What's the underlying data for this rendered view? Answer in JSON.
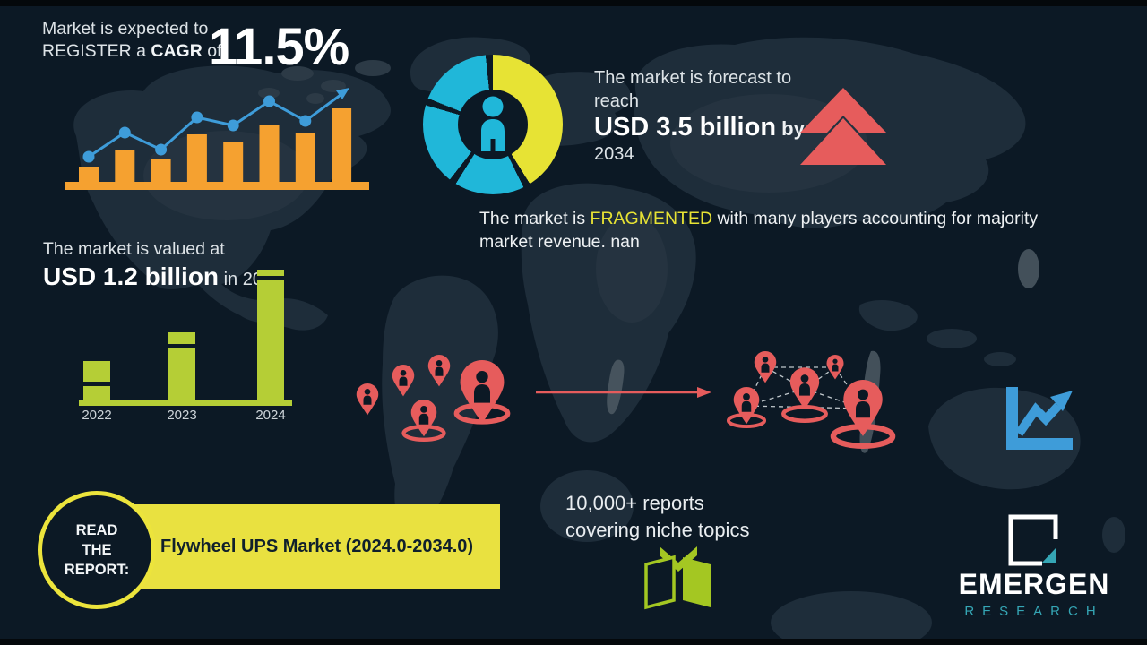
{
  "colors": {
    "background": "#0c1925",
    "map": "#1e2d3a",
    "map_light": "#2c3a46",
    "orange": "#f5a130",
    "blue": "#3e9cd9",
    "teal": "#20b7d9",
    "yellow": "#e7e334",
    "red": "#e65c5c",
    "green": "#b5ce36",
    "book_green": "#a4c722",
    "text": "#e6ebee",
    "dark_text": "#10202c",
    "brand_teal": "#35a6b5"
  },
  "cagr": {
    "line1": "Market is expected to",
    "line2_prefix": "REGISTER a ",
    "line2_bold": "CAGR",
    "line2_suffix": " of",
    "value": "11.5%"
  },
  "forecast": {
    "line1": "The market is forecast to",
    "line2": "reach",
    "value": "USD 3.5 billion",
    "by_label": " by",
    "year": "2034"
  },
  "fragmented": {
    "prefix": "The market is ",
    "highlight": "FRAGMENTED",
    "suffix": " with many players accounting for majority market revenue. nan"
  },
  "valued": {
    "line1": "The market is valued at",
    "value": "USD 1.2 billion",
    "suffix": " in 2024"
  },
  "read_report": {
    "circle_line1": "READ",
    "circle_line2": "THE",
    "circle_line3": "REPORT:",
    "band_text": "Flywheel UPS Market (2024.0-2034.0)"
  },
  "reports_promo": {
    "line1": "10,000+ reports",
    "line2": "covering niche topics",
    "icon": "open-book-icon"
  },
  "brand": {
    "name": "EMERGEN",
    "subtitle": "RESEARCH",
    "logo_icon": "square-growth-logo"
  },
  "icons": {
    "trend": "line-chart-up-arrow-icon",
    "forecast": "double-chevron-up-icon",
    "clusters": "location-pin-icon",
    "growth": "axes-zigzag-arrow-icon"
  },
  "chart_data": [
    {
      "type": "bar",
      "name": "growth-trend-decorative",
      "title": "",
      "categories": [
        "1",
        "2",
        "3",
        "4",
        "5",
        "6",
        "7",
        "8"
      ],
      "values": [
        17,
        35,
        26,
        53,
        44,
        64,
        55,
        82
      ],
      "line_series": {
        "name": "trend-line",
        "values": [
          28,
          55,
          36,
          72,
          63,
          90,
          68
        ]
      },
      "unit": "relative-height-px",
      "note": "decorative unlabeled growth chart with rising arrow",
      "colors": {
        "bar": "#f5a130",
        "line": "#3e9cd9"
      }
    },
    {
      "type": "pie",
      "name": "donut-decorative",
      "title": "",
      "segments": [
        {
          "color": "#e7e334",
          "start_deg": 0,
          "end_deg": 148
        },
        {
          "color": "#20b7d9",
          "start_deg": 154,
          "end_deg": 212
        },
        {
          "color": "#20b7d9",
          "start_deg": 218,
          "end_deg": 286
        },
        {
          "color": "#20b7d9",
          "start_deg": 292,
          "end_deg": 354
        }
      ],
      "center_icon": "person-icon"
    },
    {
      "type": "bar",
      "name": "market-value-by-year",
      "title": "",
      "categories": [
        "2022",
        "2023",
        "2024"
      ],
      "values": [
        44,
        76,
        146
      ],
      "unit": "relative-height-px",
      "note": "2024 bar corresponds to USD 1.2 billion",
      "color": "#b5ce36"
    }
  ]
}
